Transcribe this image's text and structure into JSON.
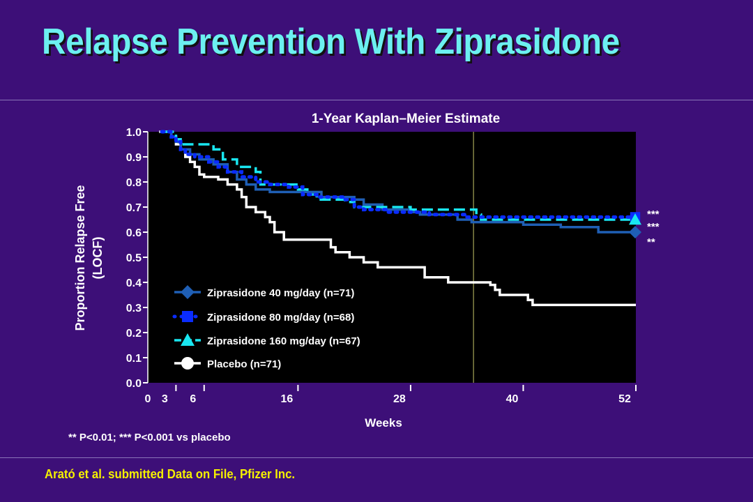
{
  "slide": {
    "title": "Relapse Prevention With Ziprasidone",
    "footnote": "** P<0.01; *** P<0.001 vs placebo",
    "source": "Arató et al. submitted  Data on File, Pfizer Inc."
  },
  "colors": {
    "background": "#3d0f78",
    "title": "#6cf0f0",
    "source": "#f4f000",
    "plot_area": "#000000",
    "zip40": "#1f5fb5",
    "zip80": "#0a2cff",
    "zip160": "#19e6f0",
    "placebo": "#ffffff"
  },
  "chart_data": {
    "type": "line",
    "title": "1-Year Kaplan–Meier Estimate",
    "xlabel": "Weeks",
    "ylabel": "Proportion Relapse Free",
    "ylabel2": "(LOCF)",
    "xlim": [
      0,
      52
    ],
    "ylim": [
      0,
      1
    ],
    "x_ticks": [
      0,
      3,
      6,
      16,
      28,
      40,
      52
    ],
    "x_tick_labels": [
      "0",
      "3",
      "6",
      "16",
      "28",
      "40",
      "52"
    ],
    "y_ticks": [
      0,
      0.1,
      0.2,
      0.3,
      0.4,
      0.5,
      0.6,
      0.7,
      0.8,
      0.9,
      1.0
    ],
    "y_tick_labels": [
      "0.0",
      "0.1",
      "0.2",
      "0.3",
      "0.4",
      "0.5",
      "0.6",
      "0.7",
      "0.8",
      "0.9",
      "1.0"
    ],
    "reference_line_x": 34.7,
    "legend_position": "bottom-left",
    "series": [
      {
        "name": "Ziprasidone 40 mg/day (n=71)",
        "marker": "diamond",
        "style": "solid",
        "end_label": "**",
        "points": [
          [
            1.3,
            1.0
          ],
          [
            2.5,
            0.98
          ],
          [
            3,
            0.96
          ],
          [
            3.5,
            0.93
          ],
          [
            4.5,
            0.91
          ],
          [
            5.5,
            0.89
          ],
          [
            7,
            0.87
          ],
          [
            8.5,
            0.84
          ],
          [
            9.5,
            0.81
          ],
          [
            10.5,
            0.79
          ],
          [
            11.5,
            0.77
          ],
          [
            13,
            0.76
          ],
          [
            17,
            0.76
          ],
          [
            18.5,
            0.74
          ],
          [
            22,
            0.73
          ],
          [
            23,
            0.71
          ],
          [
            25,
            0.69
          ],
          [
            28,
            0.68
          ],
          [
            29,
            0.67
          ],
          [
            33,
            0.65
          ],
          [
            34.5,
            0.64
          ],
          [
            40,
            0.63
          ],
          [
            44,
            0.62
          ],
          [
            48,
            0.6
          ],
          [
            52,
            0.6
          ]
        ]
      },
      {
        "name": "Ziprasidone 80 mg/day (n=68)",
        "marker": "square",
        "style": "dotted",
        "end_label": "***",
        "points": [
          [
            1.5,
            1.0
          ],
          [
            2.5,
            0.98
          ],
          [
            3,
            0.96
          ],
          [
            3.5,
            0.93
          ],
          [
            4,
            0.91
          ],
          [
            5,
            0.9
          ],
          [
            6.5,
            0.88
          ],
          [
            7.5,
            0.86
          ],
          [
            8.5,
            0.84
          ],
          [
            10,
            0.82
          ],
          [
            11.5,
            0.8
          ],
          [
            13,
            0.79
          ],
          [
            15,
            0.78
          ],
          [
            16.5,
            0.75
          ],
          [
            18,
            0.74
          ],
          [
            21,
            0.73
          ],
          [
            22,
            0.7
          ],
          [
            23,
            0.69
          ],
          [
            25.5,
            0.68
          ],
          [
            30,
            0.67
          ],
          [
            34,
            0.66
          ],
          [
            52,
            0.66
          ]
        ]
      },
      {
        "name": "Ziprasidone 160 mg/day (n=67)",
        "marker": "triangle",
        "style": "dashed",
        "end_label": "***",
        "points": [
          [
            1.6,
            1.0
          ],
          [
            3,
            0.97
          ],
          [
            3.5,
            0.95
          ],
          [
            7,
            0.93
          ],
          [
            8,
            0.89
          ],
          [
            9.5,
            0.86
          ],
          [
            11.5,
            0.84
          ],
          [
            12,
            0.79
          ],
          [
            16,
            0.77
          ],
          [
            17,
            0.75
          ],
          [
            18,
            0.73
          ],
          [
            21,
            0.72
          ],
          [
            22,
            0.7
          ],
          [
            28,
            0.69
          ],
          [
            35,
            0.67
          ],
          [
            35.5,
            0.65
          ],
          [
            52,
            0.65
          ]
        ]
      },
      {
        "name": "Placebo (n=71)",
        "marker": "circle",
        "style": "solid",
        "end_label": "",
        "points": [
          [
            1.2,
            1.0
          ],
          [
            2.5,
            0.98
          ],
          [
            3,
            0.95
          ],
          [
            3.5,
            0.93
          ],
          [
            4,
            0.9
          ],
          [
            4.5,
            0.88
          ],
          [
            5,
            0.86
          ],
          [
            5.5,
            0.83
          ],
          [
            6,
            0.82
          ],
          [
            7.5,
            0.81
          ],
          [
            8.5,
            0.79
          ],
          [
            9.5,
            0.77
          ],
          [
            10,
            0.74
          ],
          [
            10.5,
            0.7
          ],
          [
            11.5,
            0.68
          ],
          [
            12.5,
            0.66
          ],
          [
            13,
            0.64
          ],
          [
            13.5,
            0.6
          ],
          [
            14.5,
            0.57
          ],
          [
            19,
            0.57
          ],
          [
            19.5,
            0.54
          ],
          [
            20,
            0.52
          ],
          [
            21.5,
            0.5
          ],
          [
            23,
            0.48
          ],
          [
            24.5,
            0.46
          ],
          [
            28,
            0.46
          ],
          [
            29.5,
            0.42
          ],
          [
            32,
            0.4
          ],
          [
            36.5,
            0.39
          ],
          [
            37,
            0.37
          ],
          [
            37.5,
            0.35
          ],
          [
            40.5,
            0.33
          ],
          [
            41,
            0.31
          ],
          [
            52,
            0.31
          ]
        ]
      }
    ]
  }
}
